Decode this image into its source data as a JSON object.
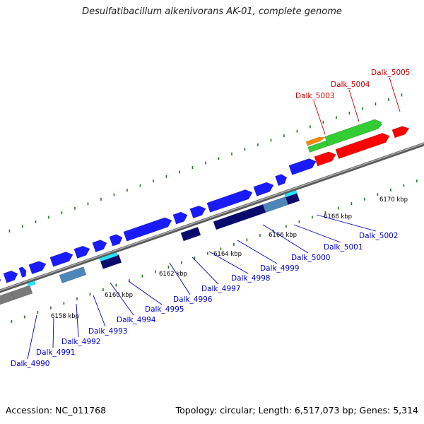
{
  "title": "Desulfatibacillum alkenivorans AK-01, complete genome",
  "accession": "Accession: NC_011768",
  "topology": "Topology: circular; Length: 6,517,073 bp; Genes: 5,314",
  "colors": {
    "cds_forward": "#1a1aff",
    "cds_reverse_dark": "#0a0a6e",
    "cds_reverse_steel": "#4f86b8",
    "cds_gray": "#7a7a7a",
    "rna_red": "#ff0000",
    "rna_green": "#33cc33",
    "rna_orange": "#ff8800",
    "label_blue": "#0000cc",
    "label_red": "#cc0000",
    "tick_green": "#1b7a1b",
    "backbone": "#8c8c8c"
  },
  "kbp_ticks": [
    {
      "label": "6158 kbp"
    },
    {
      "label": "6160 kbp"
    },
    {
      "label": "6162 kbp"
    },
    {
      "label": "6164 kbp"
    },
    {
      "label": "6166 kbp"
    },
    {
      "label": "6168 kbp"
    },
    {
      "label": "6170 kbp"
    }
  ],
  "blue_labels": [
    {
      "text": "Dalk_4990"
    },
    {
      "text": "Dalk_4991"
    },
    {
      "text": "Dalk_4992"
    },
    {
      "text": "Dalk_4993"
    },
    {
      "text": "Dalk_4994"
    },
    {
      "text": "Dalk_4995"
    },
    {
      "text": "Dalk_4996"
    },
    {
      "text": "Dalk_4997"
    },
    {
      "text": "Dalk_4998"
    },
    {
      "text": "Dalk_4999"
    },
    {
      "text": "Dalk_5000"
    },
    {
      "text": "Dalk_5001"
    },
    {
      "text": "Dalk_5002"
    }
  ],
  "red_labels": [
    {
      "text": "Dalk_5003"
    },
    {
      "text": "Dalk_5004"
    },
    {
      "text": "Dalk_5005"
    }
  ]
}
